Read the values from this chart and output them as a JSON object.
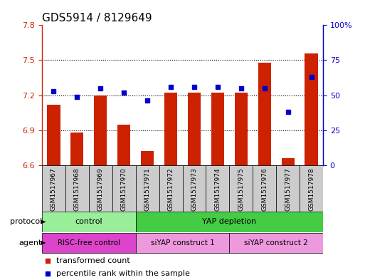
{
  "title": "GDS5914 / 8129649",
  "samples": [
    "GSM1517967",
    "GSM1517968",
    "GSM1517969",
    "GSM1517970",
    "GSM1517971",
    "GSM1517972",
    "GSM1517973",
    "GSM1517974",
    "GSM1517975",
    "GSM1517976",
    "GSM1517977",
    "GSM1517978"
  ],
  "transformed_counts": [
    7.12,
    6.88,
    7.2,
    6.95,
    6.72,
    7.22,
    7.22,
    7.22,
    7.22,
    7.48,
    6.66,
    7.56
  ],
  "percentile_ranks": [
    53,
    49,
    55,
    52,
    46,
    56,
    56,
    56,
    55,
    55,
    38,
    63
  ],
  "ylim_left": [
    6.6,
    7.8
  ],
  "ylim_right": [
    0,
    100
  ],
  "yticks_left": [
    6.6,
    6.9,
    7.2,
    7.5,
    7.8
  ],
  "yticks_right": [
    0,
    25,
    50,
    75,
    100
  ],
  "ytick_labels_right": [
    "0",
    "25",
    "50",
    "75",
    "100%"
  ],
  "bar_color": "#cc2200",
  "dot_color": "#0000cc",
  "bar_bottom": 6.6,
  "protocol_labels": [
    {
      "text": "control",
      "start": 0,
      "end": 3,
      "color": "#99ee99"
    },
    {
      "text": "YAP depletion",
      "start": 4,
      "end": 11,
      "color": "#44cc44"
    }
  ],
  "agent_labels": [
    {
      "text": "RISC-free control",
      "start": 0,
      "end": 3,
      "color": "#dd44cc"
    },
    {
      "text": "siYAP construct 1",
      "start": 4,
      "end": 7,
      "color": "#ee99dd"
    },
    {
      "text": "siYAP construct 2",
      "start": 8,
      "end": 11,
      "color": "#ee99dd"
    }
  ],
  "legend_items": [
    {
      "label": "transformed count",
      "color": "#cc2200"
    },
    {
      "label": "percentile rank within the sample",
      "color": "#0000cc"
    }
  ],
  "grid_yticks": [
    6.9,
    7.2,
    7.5
  ],
  "background_color": "#ffffff",
  "title_fontsize": 11,
  "tick_fontsize": 8,
  "sample_fontsize": 6.5,
  "label_fontsize": 8,
  "xtick_bg_color": "#cccccc"
}
